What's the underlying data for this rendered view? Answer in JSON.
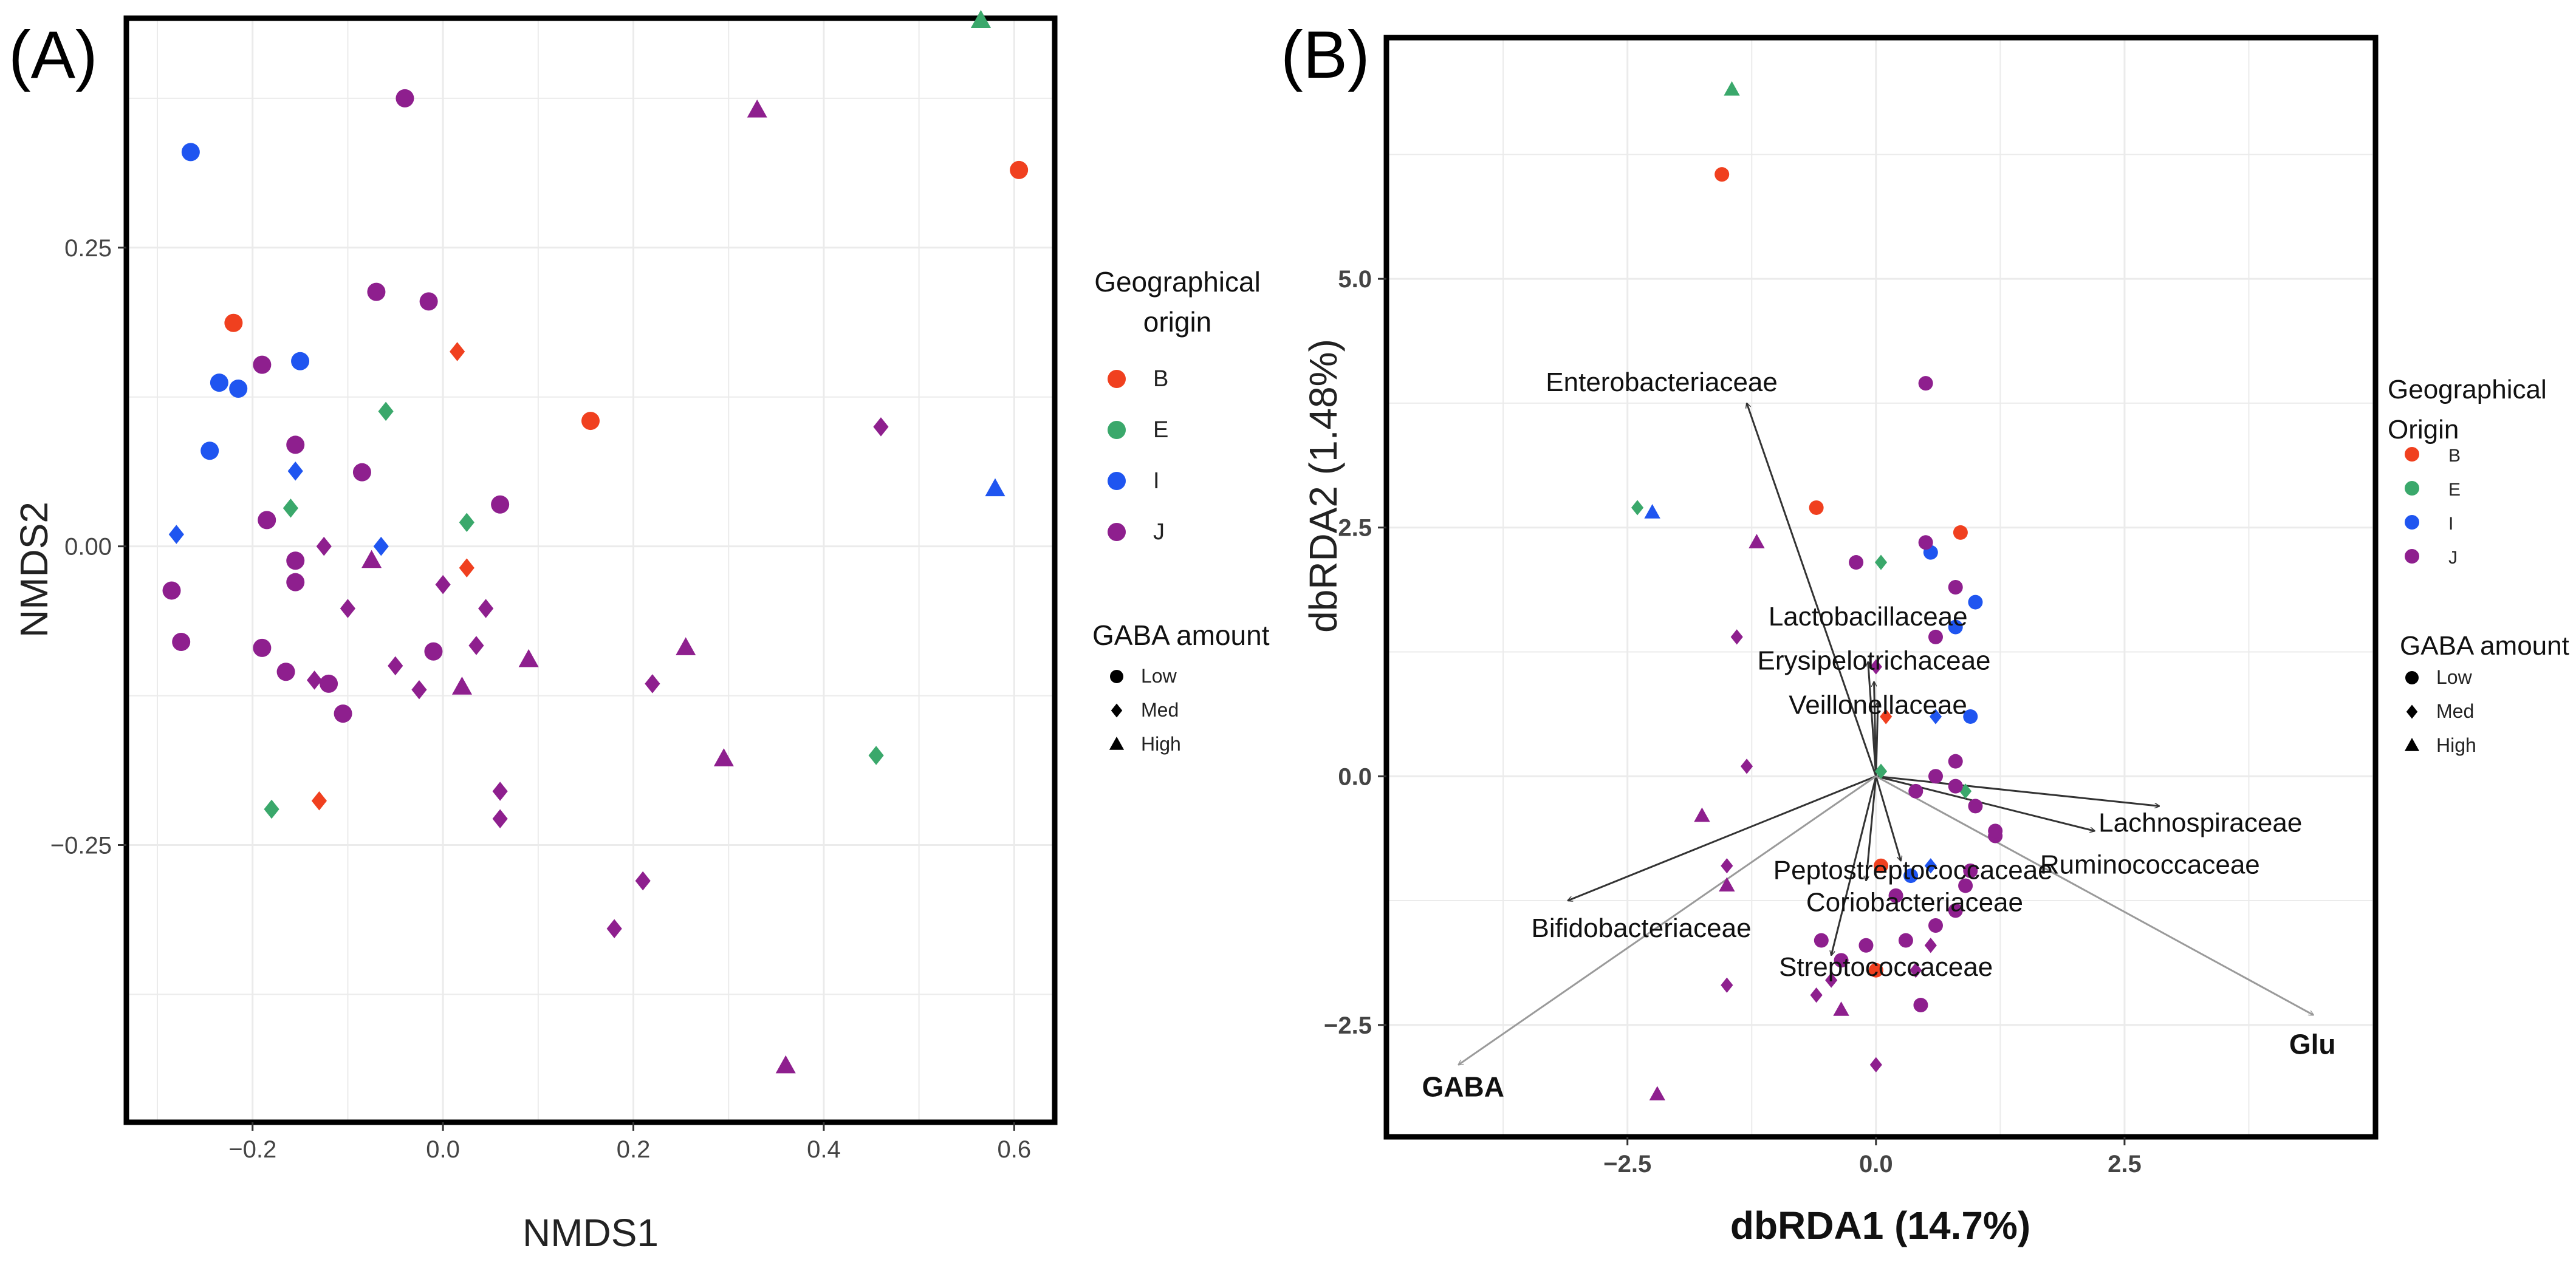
{
  "colors": {
    "B": "#f0401f",
    "E": "#3aa86b",
    "I": "#1f55f0",
    "J": "#8e1f8e"
  },
  "chart_data": [
    {
      "panel_label": "(A)",
      "type": "scatter",
      "xlabel": "NMDS1",
      "ylabel": "NMDS2",
      "xlim": [
        -0.33,
        0.64
      ],
      "ylim": [
        -0.48,
        0.44
      ],
      "xticks": [
        -0.2,
        0.0,
        0.2,
        0.4,
        0.6
      ],
      "xtick_labels": [
        "−0.2",
        "0.0",
        "0.2",
        "0.4",
        "0.6"
      ],
      "yticks": [
        -0.25,
        0.0,
        0.25
      ],
      "ytick_labels": [
        "−0.25",
        "0.00",
        "0.25"
      ],
      "grid": true,
      "legend_color": {
        "title_lines": [
          "Geographical",
          "origin"
        ],
        "items": [
          "B",
          "E",
          "I",
          "J"
        ]
      },
      "legend_shape": {
        "title": "GABA amount",
        "items": [
          "Low",
          "Med",
          "High"
        ]
      },
      "points": [
        {
          "x": 0.605,
          "y": 0.315,
          "g": "B",
          "s": "Low"
        },
        {
          "x": -0.22,
          "y": 0.187,
          "g": "B",
          "s": "Low"
        },
        {
          "x": 0.155,
          "y": 0.105,
          "g": "B",
          "s": "Low"
        },
        {
          "x": 0.015,
          "y": 0.163,
          "g": "B",
          "s": "Med"
        },
        {
          "x": 0.025,
          "y": -0.018,
          "g": "B",
          "s": "Med"
        },
        {
          "x": -0.13,
          "y": -0.213,
          "g": "B",
          "s": "Med"
        },
        {
          "x": 0.565,
          "y": 0.44,
          "g": "E",
          "s": "High"
        },
        {
          "x": -0.06,
          "y": 0.113,
          "g": "E",
          "s": "Med"
        },
        {
          "x": 0.025,
          "y": 0.02,
          "g": "E",
          "s": "Med"
        },
        {
          "x": -0.16,
          "y": 0.032,
          "g": "E",
          "s": "Med"
        },
        {
          "x": 0.455,
          "y": -0.175,
          "g": "E",
          "s": "Med"
        },
        {
          "x": -0.18,
          "y": -0.22,
          "g": "E",
          "s": "Med"
        },
        {
          "x": -0.265,
          "y": 0.33,
          "g": "I",
          "s": "Low"
        },
        {
          "x": -0.235,
          "y": 0.137,
          "g": "I",
          "s": "Low"
        },
        {
          "x": -0.215,
          "y": 0.132,
          "g": "I",
          "s": "Low"
        },
        {
          "x": -0.15,
          "y": 0.155,
          "g": "I",
          "s": "Low"
        },
        {
          "x": -0.245,
          "y": 0.08,
          "g": "I",
          "s": "Low"
        },
        {
          "x": -0.155,
          "y": 0.063,
          "g": "I",
          "s": "Med"
        },
        {
          "x": -0.28,
          "y": 0.01,
          "g": "I",
          "s": "Med"
        },
        {
          "x": -0.065,
          "y": 0.0,
          "g": "I",
          "s": "Med"
        },
        {
          "x": 0.58,
          "y": 0.048,
          "g": "I",
          "s": "High"
        },
        {
          "x": -0.04,
          "y": 0.375,
          "g": "J",
          "s": "Low"
        },
        {
          "x": -0.07,
          "y": 0.213,
          "g": "J",
          "s": "Low"
        },
        {
          "x": -0.015,
          "y": 0.205,
          "g": "J",
          "s": "Low"
        },
        {
          "x": -0.19,
          "y": 0.152,
          "g": "J",
          "s": "Low"
        },
        {
          "x": -0.155,
          "y": 0.085,
          "g": "J",
          "s": "Low"
        },
        {
          "x": -0.085,
          "y": 0.062,
          "g": "J",
          "s": "Low"
        },
        {
          "x": 0.06,
          "y": 0.035,
          "g": "J",
          "s": "Low"
        },
        {
          "x": -0.185,
          "y": 0.022,
          "g": "J",
          "s": "Low"
        },
        {
          "x": -0.155,
          "y": -0.012,
          "g": "J",
          "s": "Low"
        },
        {
          "x": -0.155,
          "y": -0.03,
          "g": "J",
          "s": "Low"
        },
        {
          "x": -0.285,
          "y": -0.037,
          "g": "J",
          "s": "Low"
        },
        {
          "x": -0.275,
          "y": -0.08,
          "g": "J",
          "s": "Low"
        },
        {
          "x": -0.19,
          "y": -0.085,
          "g": "J",
          "s": "Low"
        },
        {
          "x": -0.165,
          "y": -0.105,
          "g": "J",
          "s": "Low"
        },
        {
          "x": -0.12,
          "y": -0.115,
          "g": "J",
          "s": "Low"
        },
        {
          "x": -0.105,
          "y": -0.14,
          "g": "J",
          "s": "Low"
        },
        {
          "x": -0.01,
          "y": -0.088,
          "g": "J",
          "s": "Low"
        },
        {
          "x": 0.46,
          "y": 0.1,
          "g": "J",
          "s": "Med"
        },
        {
          "x": -0.125,
          "y": 0.0,
          "g": "J",
          "s": "Med"
        },
        {
          "x": -0.1,
          "y": -0.052,
          "g": "J",
          "s": "Med"
        },
        {
          "x": 0.0,
          "y": -0.032,
          "g": "J",
          "s": "Med"
        },
        {
          "x": 0.045,
          "y": -0.052,
          "g": "J",
          "s": "Med"
        },
        {
          "x": -0.135,
          "y": -0.112,
          "g": "J",
          "s": "Med"
        },
        {
          "x": -0.05,
          "y": -0.1,
          "g": "J",
          "s": "Med"
        },
        {
          "x": -0.025,
          "y": -0.12,
          "g": "J",
          "s": "Med"
        },
        {
          "x": 0.035,
          "y": -0.083,
          "g": "J",
          "s": "Med"
        },
        {
          "x": 0.22,
          "y": -0.115,
          "g": "J",
          "s": "Med"
        },
        {
          "x": 0.06,
          "y": -0.205,
          "g": "J",
          "s": "Med"
        },
        {
          "x": 0.06,
          "y": -0.228,
          "g": "J",
          "s": "Med"
        },
        {
          "x": 0.21,
          "y": -0.28,
          "g": "J",
          "s": "Med"
        },
        {
          "x": 0.18,
          "y": -0.32,
          "g": "J",
          "s": "Med"
        },
        {
          "x": 0.33,
          "y": 0.365,
          "g": "J",
          "s": "High"
        },
        {
          "x": -0.075,
          "y": -0.012,
          "g": "J",
          "s": "High"
        },
        {
          "x": 0.09,
          "y": -0.095,
          "g": "J",
          "s": "High"
        },
        {
          "x": 0.255,
          "y": -0.085,
          "g": "J",
          "s": "High"
        },
        {
          "x": 0.02,
          "y": -0.118,
          "g": "J",
          "s": "High"
        },
        {
          "x": 0.295,
          "y": -0.178,
          "g": "J",
          "s": "High"
        },
        {
          "x": 0.36,
          "y": -0.435,
          "g": "J",
          "s": "High"
        }
      ]
    },
    {
      "panel_label": "(B)",
      "type": "scatter",
      "xlabel": "dbRDA1 (14.7%)",
      "ylabel": "dbRDA2 (1.48%)",
      "xlim": [
        -4.9,
        5.0
      ],
      "ylim": [
        -3.6,
        7.4
      ],
      "xticks": [
        -2.5,
        0.0,
        2.5
      ],
      "xtick_labels": [
        "−2.5",
        "0.0",
        "2.5"
      ],
      "yticks": [
        -2.5,
        0.0,
        2.5,
        5.0
      ],
      "ytick_labels": [
        "−2.5",
        "0.0",
        "2.5",
        "5.0"
      ],
      "grid": true,
      "legend_color": {
        "title_lines": [
          "Geographical",
          "Origin"
        ],
        "items": [
          "B",
          "E",
          "I",
          "J"
        ]
      },
      "legend_shape": {
        "title": "GABA amount",
        "items": [
          "Low",
          "Med",
          "High"
        ]
      },
      "arrows": [
        {
          "label": "Enterobacteriaceae",
          "x": -1.3,
          "y": 3.75,
          "color": "#333333"
        },
        {
          "label": "Lactobacillaceae",
          "x": -0.08,
          "y": 1.15,
          "color": "#333333"
        },
        {
          "label": "Erysipelotrichaceae",
          "x": -0.02,
          "y": 0.95,
          "color": "#333333"
        },
        {
          "label": "Veillonellaceae",
          "x": 0.02,
          "y": 0.75,
          "color": "#333333"
        },
        {
          "label": "Lachnospiraceae",
          "x": 2.85,
          "y": -0.3,
          "color": "#333333"
        },
        {
          "label": "Peptostreptococcaceae",
          "x": 0.25,
          "y": -0.85,
          "color": "#333333"
        },
        {
          "label": "Ruminococcaceae",
          "x": 2.2,
          "y": -0.55,
          "color": "#333333"
        },
        {
          "label": "Coriobacteriaceae",
          "x": -0.1,
          "y": -1.05,
          "color": "#333333"
        },
        {
          "label": "Bifidobacteriaceae",
          "x": -3.1,
          "y": -1.25,
          "color": "#333333"
        },
        {
          "label": "Streptococcaceae",
          "x": -0.45,
          "y": -1.8,
          "color": "#333333"
        },
        {
          "label": "GABA",
          "x": -4.2,
          "y": -2.9,
          "color": "#9a9a9a",
          "bold": true
        },
        {
          "label": "Glu",
          "x": 4.4,
          "y": -2.4,
          "color": "#9a9a9a",
          "bold": true
        }
      ],
      "points": [
        {
          "x": -1.55,
          "y": 6.05,
          "g": "B",
          "s": "Low"
        },
        {
          "x": -0.6,
          "y": 2.7,
          "g": "B",
          "s": "Low"
        },
        {
          "x": 0.85,
          "y": 2.45,
          "g": "B",
          "s": "Low"
        },
        {
          "x": 0.05,
          "y": -0.9,
          "g": "B",
          "s": "Low"
        },
        {
          "x": 0.0,
          "y": -1.95,
          "g": "B",
          "s": "Low"
        },
        {
          "x": 0.1,
          "y": 0.6,
          "g": "B",
          "s": "Med"
        },
        {
          "x": -1.45,
          "y": 6.9,
          "g": "E",
          "s": "High"
        },
        {
          "x": -2.4,
          "y": 2.7,
          "g": "E",
          "s": "Med"
        },
        {
          "x": 0.05,
          "y": 2.15,
          "g": "E",
          "s": "Med"
        },
        {
          "x": 0.05,
          "y": 0.05,
          "g": "E",
          "s": "Med"
        },
        {
          "x": 0.9,
          "y": -0.15,
          "g": "E",
          "s": "Med"
        },
        {
          "x": 0.8,
          "y": 1.5,
          "g": "I",
          "s": "Low"
        },
        {
          "x": 1.0,
          "y": 1.75,
          "g": "I",
          "s": "Low"
        },
        {
          "x": 0.95,
          "y": 0.6,
          "g": "I",
          "s": "Low"
        },
        {
          "x": 0.55,
          "y": 2.25,
          "g": "I",
          "s": "Low"
        },
        {
          "x": 0.6,
          "y": 0.6,
          "g": "I",
          "s": "Med"
        },
        {
          "x": 0.55,
          "y": -0.9,
          "g": "I",
          "s": "Med"
        },
        {
          "x": 0.35,
          "y": -1.0,
          "g": "I",
          "s": "Low"
        },
        {
          "x": -2.25,
          "y": 2.65,
          "g": "I",
          "s": "High"
        },
        {
          "x": 0.5,
          "y": 3.95,
          "g": "J",
          "s": "Low"
        },
        {
          "x": -0.2,
          "y": 2.15,
          "g": "J",
          "s": "Low"
        },
        {
          "x": 0.5,
          "y": 2.35,
          "g": "J",
          "s": "Low"
        },
        {
          "x": 0.8,
          "y": 1.9,
          "g": "J",
          "s": "Low"
        },
        {
          "x": 0.6,
          "y": 1.4,
          "g": "J",
          "s": "Low"
        },
        {
          "x": 0.8,
          "y": 0.15,
          "g": "J",
          "s": "Low"
        },
        {
          "x": 0.8,
          "y": -0.1,
          "g": "J",
          "s": "Low"
        },
        {
          "x": 0.6,
          "y": 0.0,
          "g": "J",
          "s": "Low"
        },
        {
          "x": 0.4,
          "y": -0.15,
          "g": "J",
          "s": "Low"
        },
        {
          "x": 1.2,
          "y": -0.6,
          "g": "J",
          "s": "Low"
        },
        {
          "x": 0.95,
          "y": -0.95,
          "g": "J",
          "s": "Low"
        },
        {
          "x": 0.9,
          "y": -1.1,
          "g": "J",
          "s": "Low"
        },
        {
          "x": 0.8,
          "y": -1.35,
          "g": "J",
          "s": "Low"
        },
        {
          "x": 0.6,
          "y": -1.5,
          "g": "J",
          "s": "Low"
        },
        {
          "x": 0.3,
          "y": -1.65,
          "g": "J",
          "s": "Low"
        },
        {
          "x": -0.1,
          "y": -1.7,
          "g": "J",
          "s": "Low"
        },
        {
          "x": -0.35,
          "y": -1.85,
          "g": "J",
          "s": "Low"
        },
        {
          "x": -0.55,
          "y": -1.65,
          "g": "J",
          "s": "Low"
        },
        {
          "x": 0.2,
          "y": -1.2,
          "g": "J",
          "s": "Low"
        },
        {
          "x": 0.45,
          "y": -2.3,
          "g": "J",
          "s": "Low"
        },
        {
          "x": 0.0,
          "y": 1.1,
          "g": "J",
          "s": "Med"
        },
        {
          "x": -1.4,
          "y": 1.4,
          "g": "J",
          "s": "Med"
        },
        {
          "x": -1.3,
          "y": 0.1,
          "g": "J",
          "s": "Med"
        },
        {
          "x": -1.5,
          "y": -0.9,
          "g": "J",
          "s": "Med"
        },
        {
          "x": -1.5,
          "y": -2.1,
          "g": "J",
          "s": "Med"
        },
        {
          "x": -0.45,
          "y": -2.05,
          "g": "J",
          "s": "Med"
        },
        {
          "x": -0.6,
          "y": -2.2,
          "g": "J",
          "s": "Med"
        },
        {
          "x": 0.0,
          "y": -2.9,
          "g": "J",
          "s": "Med"
        },
        {
          "x": 0.55,
          "y": -1.7,
          "g": "J",
          "s": "Med"
        },
        {
          "x": 0.4,
          "y": -1.95,
          "g": "J",
          "s": "Med"
        },
        {
          "x": -1.2,
          "y": 2.35,
          "g": "J",
          "s": "High"
        },
        {
          "x": -1.75,
          "y": -0.4,
          "g": "J",
          "s": "High"
        },
        {
          "x": -1.5,
          "y": -1.1,
          "g": "J",
          "s": "High"
        },
        {
          "x": -0.35,
          "y": -2.35,
          "g": "J",
          "s": "High"
        },
        {
          "x": -2.2,
          "y": -3.2,
          "g": "J",
          "s": "High"
        },
        {
          "x": 1.2,
          "y": -0.55,
          "g": "J",
          "s": "Low"
        },
        {
          "x": 1.0,
          "y": -0.3,
          "g": "J",
          "s": "Low"
        }
      ]
    }
  ]
}
